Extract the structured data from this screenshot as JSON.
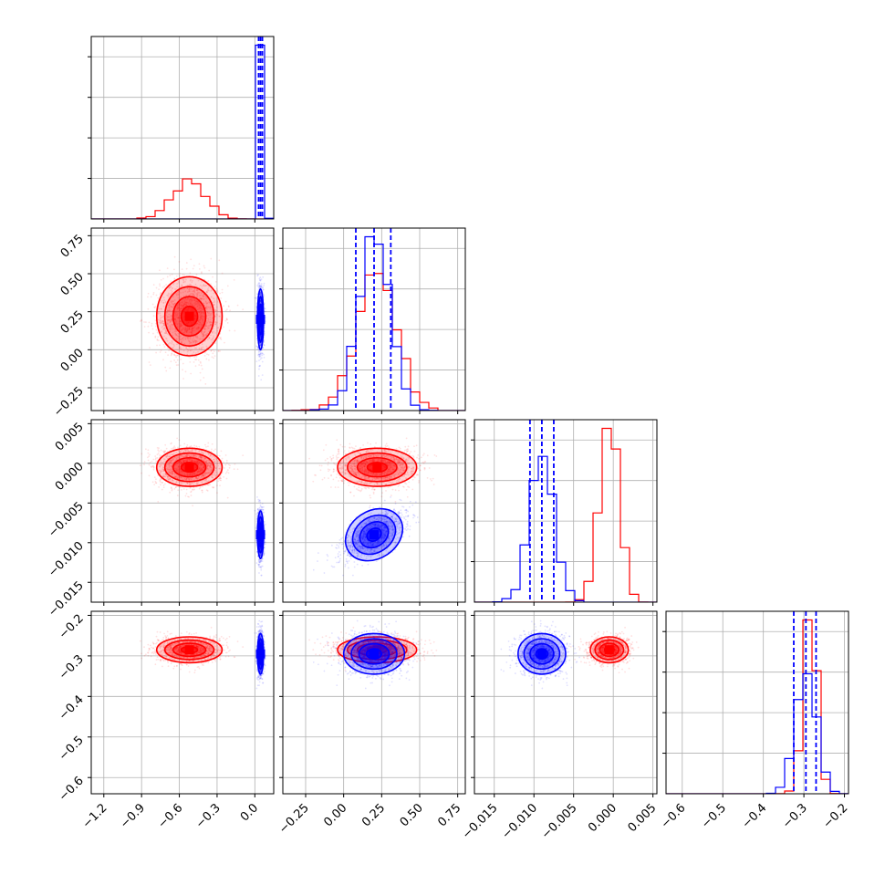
{
  "chart_data": {
    "type": "corner",
    "title": "",
    "grid": true,
    "colors": {
      "red": "#ff0000",
      "blue": "#0000ff"
    },
    "parameters": [
      {
        "index": 0,
        "range": [
          -1.3,
          0.15
        ],
        "ticks": [
          -1.2,
          -0.9,
          -0.6,
          -0.3,
          0.0
        ],
        "tick_labels": [
          "−1.2",
          "−0.9",
          "−0.6",
          "−0.3",
          "0.0"
        ]
      },
      {
        "index": 1,
        "range": [
          -0.4,
          0.8
        ],
        "ticks": [
          -0.25,
          0.0,
          0.25,
          0.5,
          0.75
        ],
        "tick_labels": [
          "−0.25",
          "0.00",
          "0.25",
          "0.50",
          "0.75"
        ]
      },
      {
        "index": 2,
        "range": [
          -0.0175,
          0.0055
        ],
        "ticks": [
          -0.015,
          -0.01,
          -0.005,
          0.0,
          0.005
        ],
        "tick_labels": [
          "−0.015",
          "−0.010",
          "−0.005",
          "0.000",
          "0.005"
        ]
      },
      {
        "index": 3,
        "range": [
          -0.64,
          -0.19
        ],
        "ticks": [
          -0.6,
          -0.5,
          -0.4,
          -0.3,
          -0.2
        ],
        "tick_labels": [
          "−0.6",
          "−0.5",
          "−0.4",
          "−0.3",
          "−0.2"
        ]
      }
    ],
    "series": [
      {
        "color": "red",
        "mean": [
          -0.52,
          0.22,
          -0.0005,
          -0.285
        ],
        "sd": [
          0.13,
          0.13,
          0.0012,
          0.016
        ],
        "corr": [
          [
            1,
            0,
            0,
            0
          ],
          [
            0,
            1,
            0,
            0
          ],
          [
            0,
            0,
            1,
            0
          ],
          [
            0,
            0,
            0,
            1
          ]
        ],
        "quantiles": null
      },
      {
        "color": "blue",
        "mean": [
          0.045,
          0.2,
          -0.009,
          -0.295
        ],
        "sd": [
          0.012,
          0.1,
          0.0015,
          0.025
        ],
        "corr": [
          [
            1,
            0,
            0,
            0
          ],
          [
            0,
            1,
            0.6,
            0
          ],
          [
            0,
            0.6,
            1,
            0
          ],
          [
            0,
            0,
            0,
            1
          ]
        ],
        "quantiles": [
          [
            0.03,
            0.045,
            0.06
          ],
          [
            0.08,
            0.2,
            0.31
          ],
          [
            -0.0105,
            -0.009,
            -0.0075
          ],
          [
            -0.325,
            -0.295,
            -0.27
          ]
        ]
      }
    ]
  }
}
